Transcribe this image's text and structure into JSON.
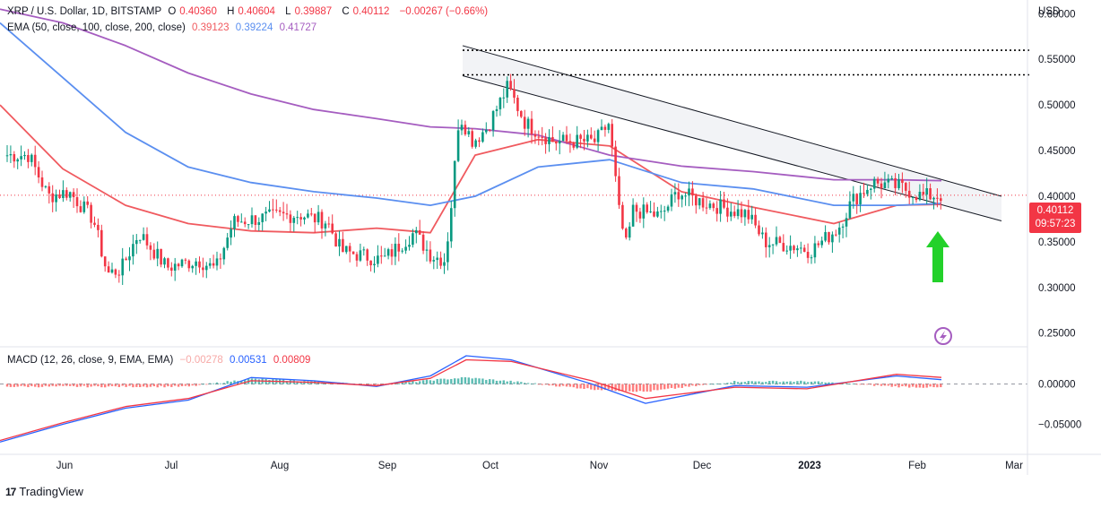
{
  "legend": {
    "symbol": "XRP / U.S. Dollar, 1D, BITSTAMP",
    "open_label": "O",
    "open": "0.40360",
    "high_label": "H",
    "high": "0.40604",
    "low_label": "L",
    "low": "0.39887",
    "close_label": "C",
    "close": "0.40112",
    "change": "−0.00267 (−0.66%)",
    "ema_label": "EMA (50, close, 100, close, 200, close)",
    "ema50": "0.39123",
    "ema100": "0.39224",
    "ema200": "0.41727",
    "macd_label": "MACD (12, 26, close, 9, EMA, EMA)",
    "macd_hist": "−0.00278",
    "macd_line": "0.00531",
    "macd_signal": "0.00809"
  },
  "currency": "USD",
  "price_badge": {
    "price": "0.40112",
    "countdown": "09:57:23"
  },
  "brand": "TradingView",
  "colors": {
    "up": "#089981",
    "down": "#f23645",
    "ema50": "#f05a5f",
    "ema100": "#5b8ff0",
    "ema200": "#a55dc0",
    "macd_line": "#2962ff",
    "macd_signal": "#f23645",
    "arrow": "#23d12a",
    "level": "#000000"
  },
  "chart_data": [
    {
      "type": "candlestick",
      "title": "XRP / U.S. Dollar, 1D, BITSTAMP",
      "x_ticks": [
        "Jun",
        "Jul",
        "Aug",
        "Sep",
        "Oct",
        "Nov",
        "Dec",
        "2023",
        "Feb",
        "Mar"
      ],
      "y_ticks": [
        "0.60000",
        "0.55000",
        "0.50000",
        "0.45000",
        "0.40000",
        "0.35000",
        "0.30000",
        "0.25000"
      ],
      "ylim": [
        0.235,
        0.615
      ],
      "last_price": 0.40112,
      "ohlc_keypoints": [
        {
          "t": "May 20",
          "c": 0.445
        },
        {
          "t": "May 27",
          "c": 0.4
        },
        {
          "t": "Jun 3",
          "c": 0.405
        },
        {
          "t": "Jun 10",
          "c": 0.375
        },
        {
          "t": "Jun 14",
          "c": 0.315
        },
        {
          "t": "Jun 18",
          "c": 0.32
        },
        {
          "t": "Jun 23",
          "c": 0.36
        },
        {
          "t": "Jul 1",
          "c": 0.322
        },
        {
          "t": "Jul 10",
          "c": 0.33
        },
        {
          "t": "Jul 15",
          "c": 0.32
        },
        {
          "t": "Jul 20",
          "c": 0.372
        },
        {
          "t": "Aug 1",
          "c": 0.378
        },
        {
          "t": "Aug 8",
          "c": 0.38
        },
        {
          "t": "Aug 16",
          "c": 0.372
        },
        {
          "t": "Aug 20",
          "c": 0.34
        },
        {
          "t": "Sep 1",
          "c": 0.33
        },
        {
          "t": "Sep 10",
          "c": 0.36
        },
        {
          "t": "Sep 15",
          "c": 0.335
        },
        {
          "t": "Sep 19",
          "c": 0.33
        },
        {
          "t": "Sep 21",
          "c": 0.4
        },
        {
          "t": "Sep 23",
          "c": 0.49
        },
        {
          "t": "Sep 27",
          "c": 0.46
        },
        {
          "t": "Oct 1",
          "c": 0.475
        },
        {
          "t": "Oct 7",
          "c": 0.52
        },
        {
          "t": "Oct 12",
          "c": 0.48
        },
        {
          "t": "Oct 20",
          "c": 0.46
        },
        {
          "t": "Nov 1",
          "c": 0.46
        },
        {
          "t": "Nov 5",
          "c": 0.48
        },
        {
          "t": "Nov 8",
          "c": 0.38
        },
        {
          "t": "Nov 10",
          "c": 0.345
        },
        {
          "t": "Nov 12",
          "c": 0.385
        },
        {
          "t": "Nov 20",
          "c": 0.378
        },
        {
          "t": "Nov 25",
          "c": 0.405
        },
        {
          "t": "Dec 1",
          "c": 0.395
        },
        {
          "t": "Dec 15",
          "c": 0.38
        },
        {
          "t": "Dec 20",
          "c": 0.35
        },
        {
          "t": "Dec 29",
          "c": 0.345
        },
        {
          "t": "Jan 2",
          "c": 0.34
        },
        {
          "t": "Jan 10",
          "c": 0.365
        },
        {
          "t": "Jan 14",
          "c": 0.395
        },
        {
          "t": "Jan 20",
          "c": 0.415
        },
        {
          "t": "Jan 28",
          "c": 0.41
        },
        {
          "t": "Feb 3",
          "c": 0.4
        },
        {
          "t": "Feb 7",
          "c": 0.401
        }
      ],
      "series": [
        {
          "name": "EMA 50",
          "color": "#f05a5f",
          "values": [
            0.5,
            0.43,
            0.39,
            0.37,
            0.362,
            0.36,
            0.365,
            0.36,
            0.445,
            0.462,
            0.455,
            0.405,
            0.388,
            0.37,
            0.39,
            0.391
          ]
        },
        {
          "name": "EMA 100",
          "color": "#5b8ff0",
          "values": [
            0.59,
            0.53,
            0.47,
            0.432,
            0.415,
            0.405,
            0.398,
            0.39,
            0.4,
            0.432,
            0.44,
            0.415,
            0.408,
            0.39,
            0.39,
            0.392
          ]
        },
        {
          "name": "EMA 200",
          "color": "#a55dc0",
          "values": [
            0.605,
            0.59,
            0.565,
            0.535,
            0.512,
            0.495,
            0.485,
            0.476,
            0.474,
            0.467,
            0.445,
            0.433,
            0.427,
            0.418,
            0.418,
            0.417
          ]
        }
      ],
      "annotations": {
        "horizontal_levels": [
          0.56,
          0.533
        ],
        "descending_channel": {
          "upper": [
            0.565,
            0.4
          ],
          "lower": [
            0.532,
            0.373
          ]
        },
        "arrow": "up, below last candle"
      }
    },
    {
      "type": "macd",
      "title": "MACD (12, 26, close, 9, EMA, EMA)",
      "y_ticks": [
        "0.00000",
        "−0.05000"
      ],
      "ylim": [
        -0.085,
        0.045
      ],
      "series": [
        {
          "name": "MACD",
          "color": "#2962ff",
          "values": [
            -0.072,
            -0.05,
            -0.03,
            -0.02,
            0.008,
            0.004,
            -0.003,
            0.01,
            0.035,
            0.03,
            0.0,
            -0.024,
            -0.002,
            -0.004,
            0.01,
            0.0053
          ]
        },
        {
          "name": "Signal",
          "color": "#f23645",
          "values": [
            -0.07,
            -0.048,
            -0.028,
            -0.018,
            0.004,
            0.002,
            -0.002,
            0.007,
            0.03,
            0.028,
            0.004,
            -0.018,
            -0.004,
            -0.006,
            0.012,
            0.0081
          ]
        }
      ]
    }
  ]
}
